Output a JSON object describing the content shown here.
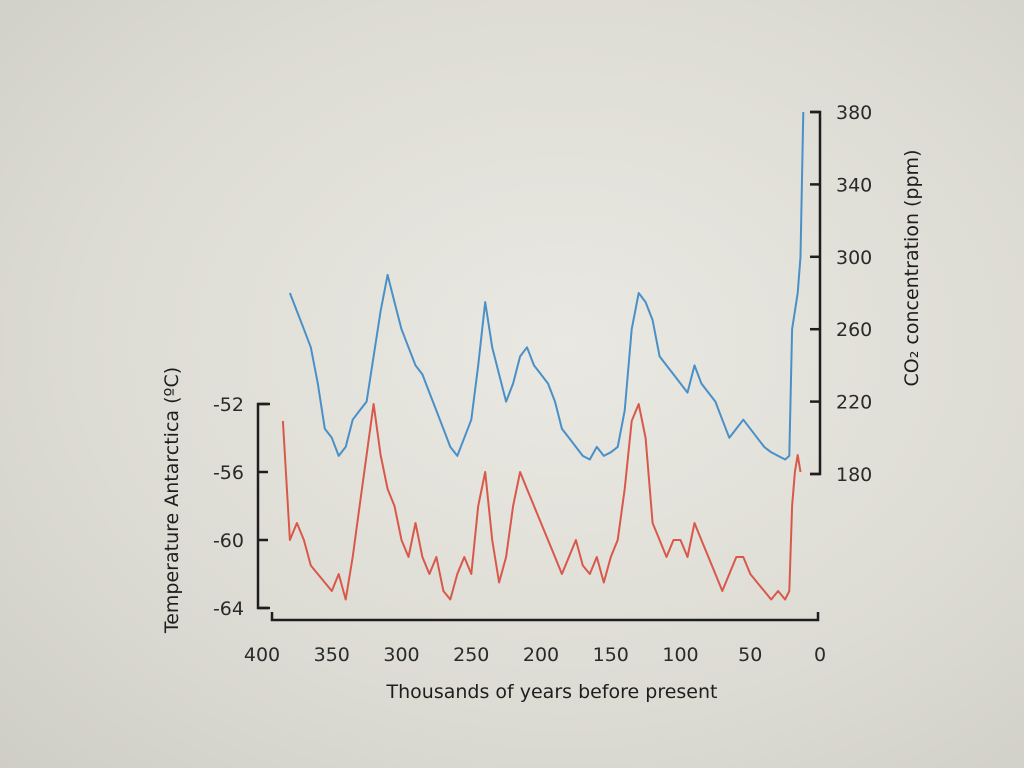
{
  "chart_data": {
    "type": "line",
    "xlabel": "Thousands of years before present",
    "ylabel_left": "Temperature Antarctica (ºC)",
    "ylabel_right": "CO₂ concentration (ppm)",
    "x_ticks": [
      400,
      350,
      300,
      250,
      200,
      150,
      100,
      50,
      0
    ],
    "x_reversed": true,
    "xlim": [
      400,
      0
    ],
    "temp_ticks": [
      -52,
      -56,
      -60,
      -64
    ],
    "temp_lim": [
      -64,
      -52
    ],
    "co2_ticks": [
      380,
      340,
      300,
      260,
      220,
      180
    ],
    "co2_lim": [
      180,
      380
    ],
    "grid": false,
    "legend": "none",
    "series": [
      {
        "axis": "right",
        "color": "#4a90c8",
        "x": [
          380,
          375,
          370,
          365,
          360,
          355,
          350,
          345,
          340,
          335,
          330,
          325,
          320,
          315,
          310,
          305,
          300,
          295,
          290,
          285,
          280,
          275,
          270,
          265,
          260,
          255,
          250,
          245,
          240,
          235,
          230,
          225,
          220,
          215,
          210,
          205,
          200,
          195,
          190,
          185,
          180,
          175,
          170,
          165,
          160,
          155,
          150,
          145,
          140,
          135,
          130,
          125,
          120,
          115,
          110,
          105,
          100,
          95,
          90,
          85,
          80,
          75,
          70,
          65,
          60,
          55,
          50,
          45,
          40,
          35,
          30,
          25,
          22,
          20,
          18,
          16,
          14,
          12
        ],
        "values": [
          280,
          270,
          260,
          250,
          230,
          205,
          200,
          190,
          195,
          210,
          215,
          220,
          245,
          270,
          290,
          275,
          260,
          250,
          240,
          235,
          225,
          215,
          205,
          195,
          190,
          200,
          210,
          240,
          275,
          250,
          235,
          220,
          230,
          245,
          250,
          240,
          235,
          230,
          220,
          205,
          200,
          195,
          190,
          188,
          195,
          190,
          192,
          195,
          215,
          260,
          280,
          275,
          265,
          245,
          240,
          235,
          230,
          225,
          240,
          230,
          225,
          220,
          210,
          200,
          205,
          210,
          205,
          200,
          195,
          192,
          190,
          188,
          190,
          260,
          270,
          280,
          300,
          380
        ]
      },
      {
        "axis": "left",
        "color": "#d8594a",
        "x": [
          385,
          380,
          375,
          370,
          365,
          360,
          355,
          350,
          345,
          340,
          335,
          330,
          325,
          320,
          315,
          310,
          305,
          300,
          295,
          290,
          285,
          280,
          275,
          270,
          265,
          260,
          255,
          250,
          245,
          240,
          235,
          230,
          225,
          220,
          215,
          210,
          205,
          200,
          195,
          190,
          185,
          180,
          175,
          170,
          165,
          160,
          155,
          150,
          145,
          140,
          135,
          130,
          125,
          120,
          115,
          110,
          105,
          100,
          95,
          90,
          85,
          80,
          75,
          70,
          65,
          60,
          55,
          50,
          45,
          40,
          35,
          30,
          25,
          22,
          20,
          18,
          16,
          14
        ],
        "values": [
          -53,
          -60,
          -59,
          -60,
          -61.5,
          -62,
          -62.5,
          -63,
          -62,
          -63.5,
          -61,
          -58,
          -55,
          -52,
          -55,
          -57,
          -58,
          -60,
          -61,
          -59,
          -61,
          -62,
          -61,
          -63,
          -63.5,
          -62,
          -61,
          -62,
          -58,
          -56,
          -60,
          -62.5,
          -61,
          -58,
          -56,
          -57,
          -58,
          -59,
          -60,
          -61,
          -62,
          -61,
          -60,
          -61.5,
          -62,
          -61,
          -62.5,
          -61,
          -60,
          -57,
          -53,
          -52,
          -54,
          -59,
          -60,
          -61,
          -60,
          -60,
          -61,
          -59,
          -60,
          -61,
          -62,
          -63,
          -62,
          -61,
          -61,
          -62,
          -62.5,
          -63,
          -63.5,
          -63,
          -63.5,
          -63,
          -58,
          -56,
          -55,
          -56
        ]
      }
    ]
  }
}
